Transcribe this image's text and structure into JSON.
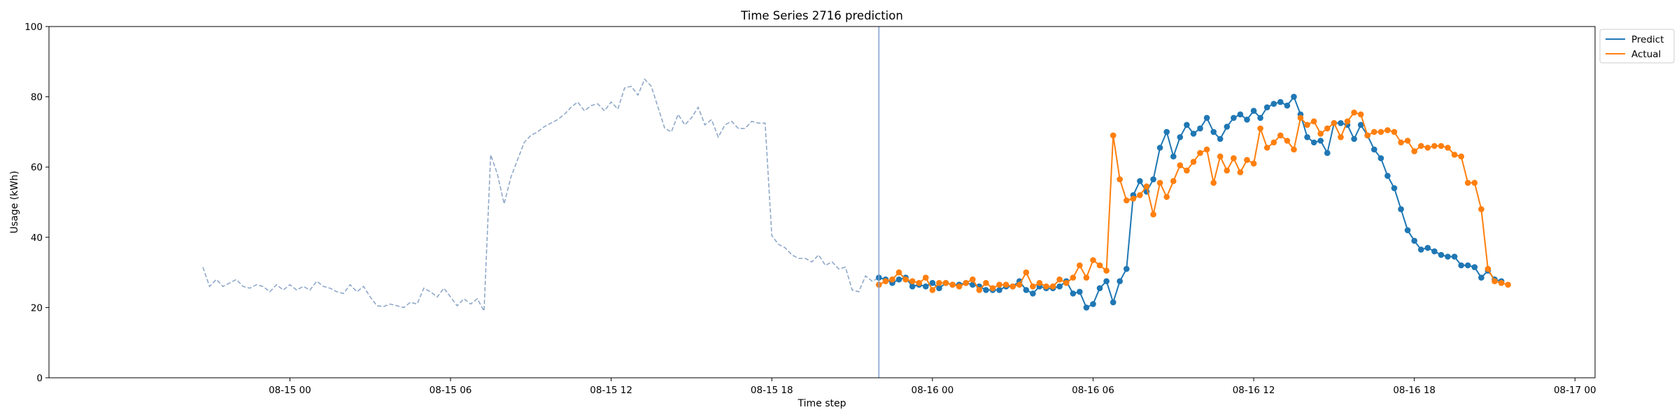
{
  "chart_data": {
    "type": "line",
    "title": "Time Series 2716 prediction",
    "xlabel": "Time step",
    "ylabel": "Usage (kWh)",
    "ylim": [
      0,
      100
    ],
    "yticks": [
      0,
      20,
      40,
      60,
      80,
      100
    ],
    "xlim": [
      "2023-08-14 15:00",
      "2023-08-17 00:45"
    ],
    "xticks": [
      {
        "at": "2023-08-15 00:00",
        "label": "08-15 00"
      },
      {
        "at": "2023-08-15 06:00",
        "label": "08-15 06"
      },
      {
        "at": "2023-08-15 12:00",
        "label": "08-15 12"
      },
      {
        "at": "2023-08-15 18:00",
        "label": "08-15 18"
      },
      {
        "at": "2023-08-16 00:00",
        "label": "08-16 00"
      },
      {
        "at": "2023-08-16 06:00",
        "label": "08-16 06"
      },
      {
        "at": "2023-08-16 12:00",
        "label": "08-16 12"
      },
      {
        "at": "2023-08-16 18:00",
        "label": "08-16 18"
      },
      {
        "at": "2023-08-17 00:00",
        "label": "08-17 00"
      }
    ],
    "grid": false,
    "legend": {
      "position": "top-right",
      "entries": [
        "Predict",
        "Actual"
      ]
    },
    "vline": "2023-08-15 22:00",
    "interval_minutes": 15,
    "series": [
      {
        "name": "",
        "style": "dashed",
        "color": "#8fa8c8",
        "start": "2023-08-14 20:45",
        "values": [
          31.5,
          26,
          28,
          26,
          27,
          28,
          26,
          25.5,
          26.5,
          26,
          24.5,
          26.5,
          25,
          26.5,
          25,
          26,
          25,
          27.5,
          26,
          25.5,
          24.5,
          24,
          26.5,
          24.5,
          26,
          23,
          20.5,
          20.3,
          21,
          20.5,
          20,
          21.5,
          21,
          25.5,
          24.5,
          23,
          25.5,
          23,
          20.5,
          22.5,
          21,
          22.5,
          19,
          63.5,
          58,
          49.5,
          57,
          62,
          67,
          69,
          70,
          71.5,
          72.5,
          73.5,
          75,
          77,
          78.5,
          76,
          77.5,
          78,
          76,
          78.5,
          76.5,
          82.5,
          83,
          80.5,
          85,
          83,
          77,
          71,
          70,
          75,
          72,
          74,
          77,
          72,
          73.5,
          68.5,
          72,
          73,
          71,
          71,
          73,
          72.5,
          72.5,
          40.5,
          38,
          37,
          35,
          34,
          34,
          33,
          35,
          32,
          33,
          31,
          31.5,
          25,
          24.5,
          29,
          27.5,
          28.5
        ]
      },
      {
        "name": "Predict",
        "style": "line-marker",
        "color": "#1f77b4",
        "start": "2023-08-15 22:00",
        "values": [
          28.5,
          28,
          27,
          28,
          28.5,
          26,
          26.5,
          26,
          27,
          25.5,
          27,
          26.5,
          26.5,
          27,
          26.5,
          26,
          25,
          25,
          25,
          26,
          26,
          27.5,
          25,
          24,
          26,
          25.5,
          25.5,
          26,
          27.5,
          24,
          24.5,
          20,
          21,
          25.5,
          27.5,
          21.5,
          27.5,
          31,
          52,
          56,
          53,
          56.5,
          65.5,
          70,
          63,
          68.5,
          72,
          69.5,
          71,
          74,
          70,
          68,
          71.5,
          74,
          75,
          73.5,
          76,
          74,
          77,
          78,
          78.5,
          77.5,
          80,
          75,
          68.5,
          67,
          67.5,
          64,
          72.5,
          72.5,
          72,
          68,
          72,
          69,
          65,
          62.5,
          57.5,
          54,
          48,
          42,
          39,
          36.5,
          37,
          36,
          35,
          34.5,
          34.5,
          32,
          32,
          31.5,
          28.5,
          30.5,
          28,
          27.5
        ]
      },
      {
        "name": "Actual",
        "style": "line-marker",
        "color": "#ff7f0e",
        "start": "2023-08-15 22:00",
        "values": [
          26.5,
          27.5,
          28,
          30,
          28,
          27.5,
          27,
          28.5,
          25,
          27,
          27,
          26.5,
          26,
          27,
          28,
          25,
          27,
          25.5,
          26.5,
          26.5,
          26,
          26.5,
          30,
          26,
          27,
          26,
          26,
          28,
          27,
          28.5,
          32,
          28.5,
          33.5,
          32,
          30.5,
          69,
          56.5,
          50.5,
          51,
          52,
          54.5,
          46.5,
          55.5,
          51.5,
          56,
          60.5,
          59,
          61.5,
          64,
          65,
          55.5,
          63,
          59,
          62.5,
          58.5,
          62,
          61,
          71,
          65.5,
          67,
          69,
          67.5,
          65,
          74,
          72,
          73,
          69.5,
          71,
          72.5,
          68.5,
          73,
          75.5,
          75,
          69,
          70,
          70,
          70.5,
          70,
          67,
          67.5,
          64.5,
          66,
          65.5,
          66,
          66,
          65.5,
          63.5,
          63,
          55.5,
          55.5,
          48,
          31,
          27.5,
          27,
          26.5
        ]
      }
    ]
  }
}
